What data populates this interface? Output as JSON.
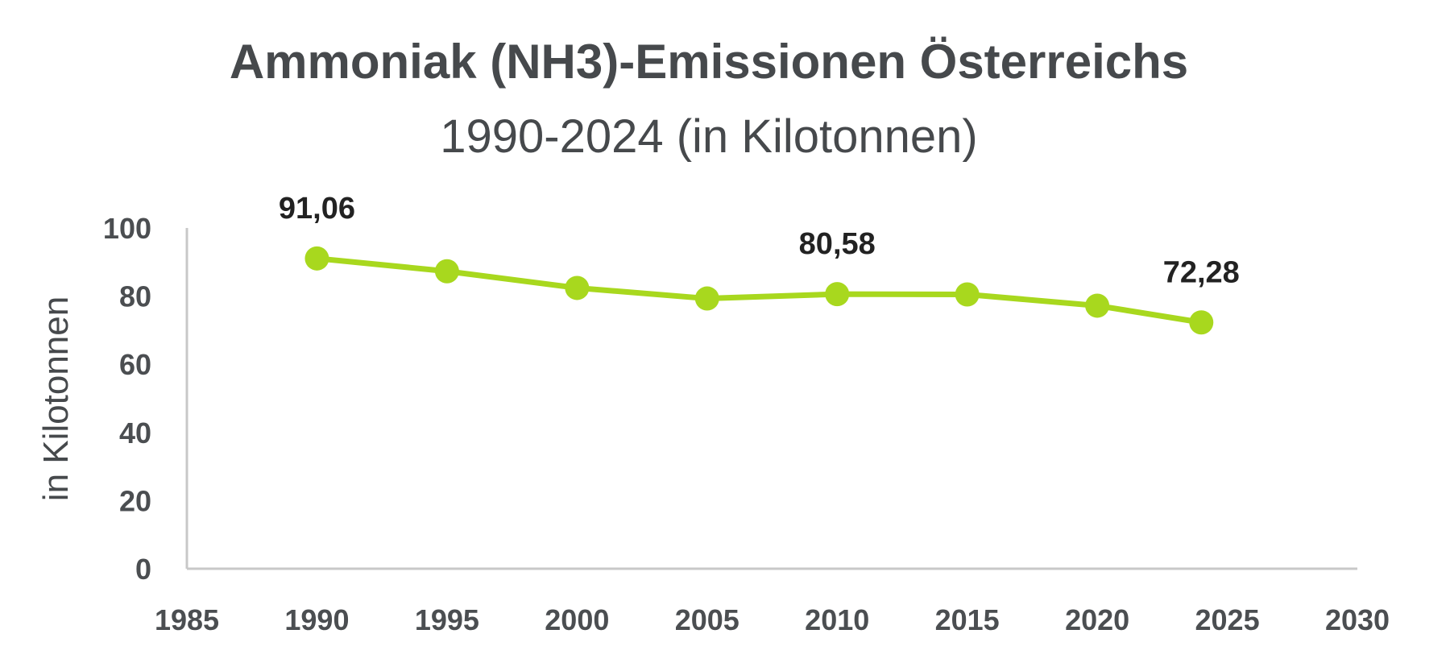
{
  "chart_data": {
    "type": "line",
    "title": "Ammoniak (NH3)-Emissionen Österreichs",
    "subtitle": "1990-2024 (in Kilotonnen)",
    "xlabel": "",
    "ylabel": "in Kilotonnen",
    "xlim": [
      1985,
      2030
    ],
    "ylim": [
      0,
      100
    ],
    "x_ticks": [
      1985,
      1990,
      1995,
      2000,
      2005,
      2010,
      2015,
      2020,
      2025,
      2030
    ],
    "y_ticks": [
      0,
      20,
      40,
      60,
      80,
      100
    ],
    "grid": false,
    "legend": "none",
    "line_color": "#a8d81e",
    "series": [
      {
        "x": [
          1990,
          1995,
          2000,
          2005,
          2010,
          2015,
          2020,
          2024
        ],
        "values": [
          91.06,
          87.3,
          82.4,
          79.3,
          80.58,
          80.5,
          77.2,
          72.28
        ]
      }
    ],
    "data_labels": [
      {
        "x": 1990,
        "y": 91.06,
        "text": "91,06"
      },
      {
        "x": 2010,
        "y": 80.58,
        "text": "80,58"
      },
      {
        "x": 2024,
        "y": 72.28,
        "text": "72,28"
      }
    ]
  }
}
